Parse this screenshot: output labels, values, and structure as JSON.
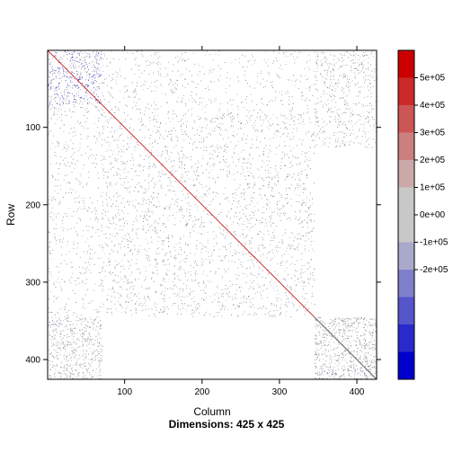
{
  "chart_data": {
    "type": "heatmap",
    "xlabel": "Column",
    "ylabel": "Row",
    "sub": "Dimensions: 425 x 425",
    "dimensions": [
      425,
      425
    ],
    "xlim": [
      1,
      425
    ],
    "ylim": [
      1,
      425
    ],
    "y_reversed": true,
    "x_ticks": [
      100,
      200,
      300,
      400
    ],
    "y_ticks": [
      100,
      200,
      300,
      400
    ],
    "colorkey": {
      "range": [
        -600000,
        600000
      ],
      "breaks": [
        -600000,
        -500000,
        -400000,
        -300000,
        -200000,
        -100000,
        0,
        100000,
        200000,
        300000,
        400000,
        500000,
        600000
      ],
      "colors": [
        "#0000CC",
        "#2A2ACC",
        "#5555CC",
        "#7F7FCC",
        "#A9A9CC",
        "#C8C8C8",
        "#C8C8C8",
        "#CCA9A9",
        "#CC7F7F",
        "#CC5555",
        "#CC2A2A",
        "#CC0000"
      ],
      "tick_values": [
        -200000,
        -100000,
        0,
        100000,
        200000,
        300000,
        400000,
        500000
      ],
      "tick_labels": [
        "-2e+05",
        "-1e+05",
        "0e+00",
        "1e+05",
        "2e+05",
        "3e+05",
        "4e+05",
        "5e+05"
      ]
    },
    "structure": {
      "diagonal": {
        "from": 1,
        "to": 425,
        "red_until": 345,
        "grey_from": 345
      },
      "dense_block": {
        "rows": [
          80,
          345
        ],
        "cols": [
          70,
          345
        ]
      },
      "blue_cluster": {
        "rows": [
          1,
          70
        ],
        "cols": [
          1,
          70
        ]
      },
      "corner_block": {
        "rows": [
          345,
          425
        ],
        "cols": [
          345,
          425
        ]
      }
    }
  }
}
